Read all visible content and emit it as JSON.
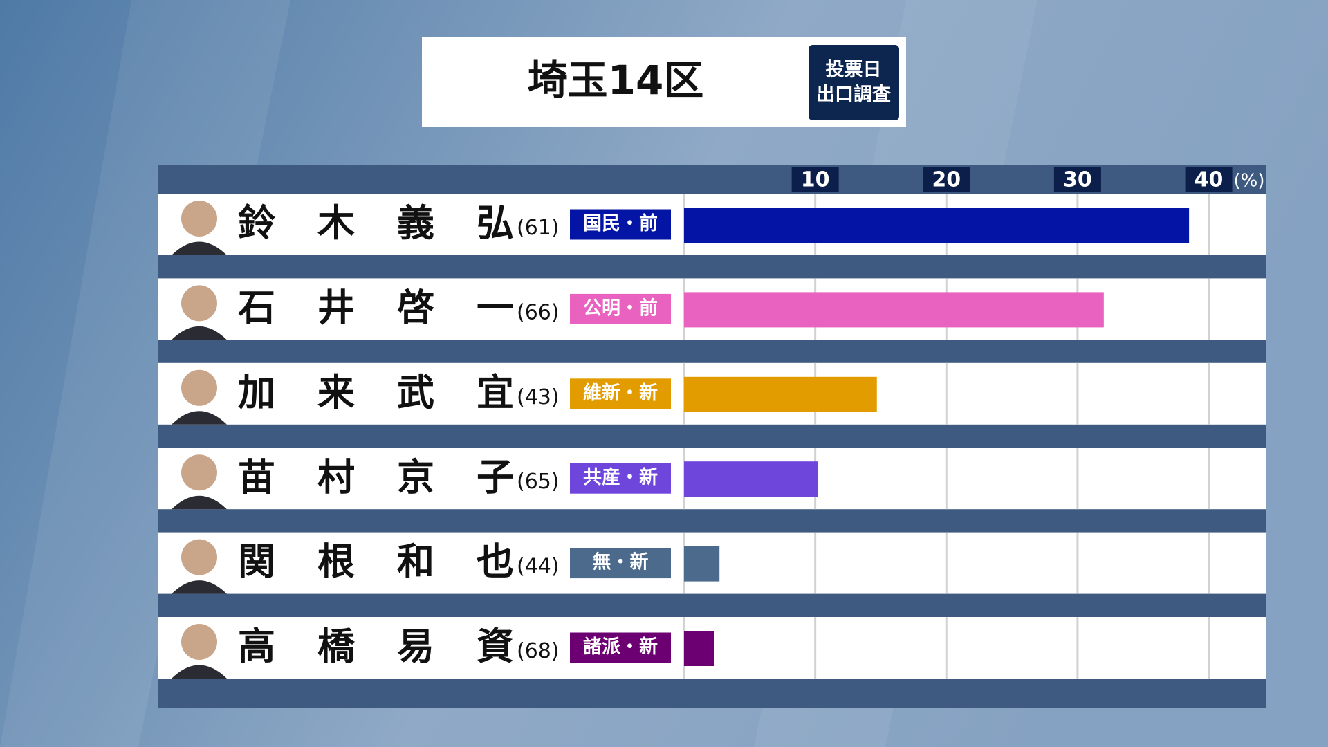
{
  "chart_data": {
    "type": "bar",
    "orientation": "horizontal",
    "title": "埼玉14区",
    "badge": [
      "投票日",
      "出口調査"
    ],
    "categories": [
      "鈴木義弘",
      "石井啓一",
      "加来武宜",
      "苗村京子",
      "関根和也",
      "高橋易資"
    ],
    "ages": [
      "(61)",
      "(66)",
      "(43)",
      "(65)",
      "(44)",
      "(68)"
    ],
    "parties": [
      "国民・前",
      "公明・前",
      "維新・新",
      "共産・新",
      "無・新",
      "諸派・新"
    ],
    "colors": [
      "#0414a4",
      "#ea62c0",
      "#e29c00",
      "#6e46dc",
      "#4c6a8c",
      "#6c0072"
    ],
    "values": [
      38.5,
      32,
      14.7,
      10.2,
      2.7,
      2.3
    ],
    "xlim": [
      0,
      44.4
    ],
    "xticks": [
      10,
      20,
      30,
      40
    ],
    "unit": "(%)",
    "grid": true
  }
}
